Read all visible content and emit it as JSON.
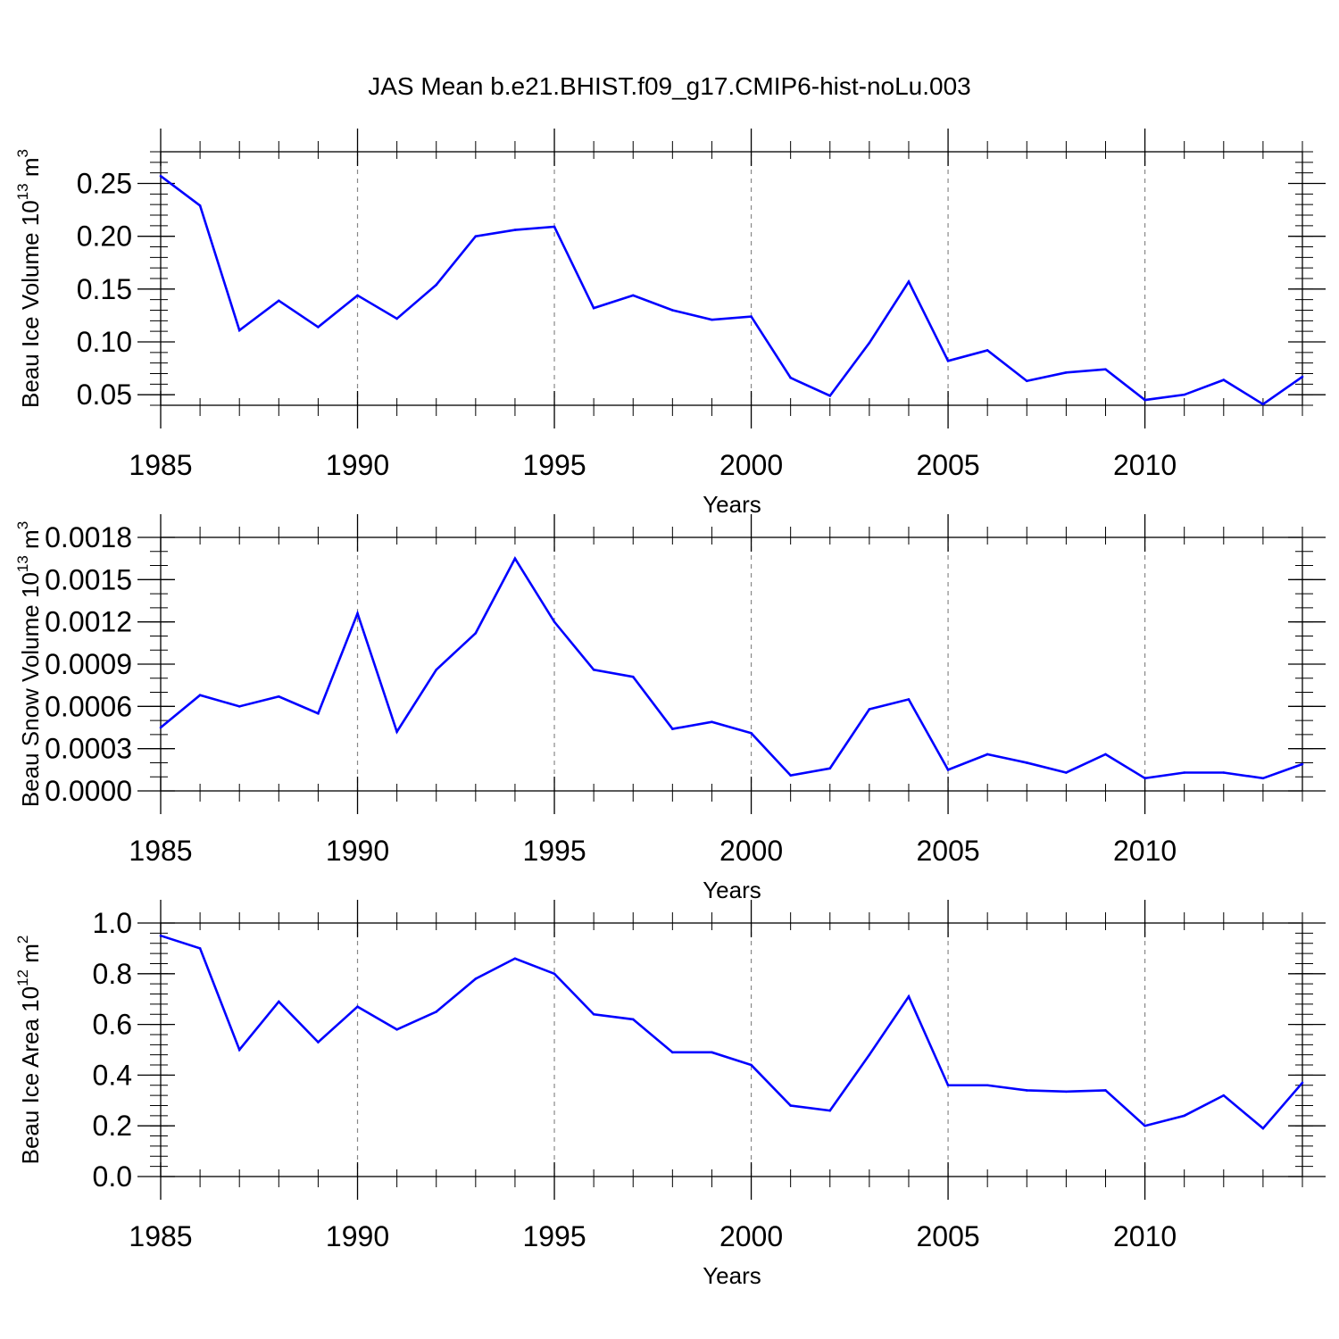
{
  "title": "JAS Mean b.e21.BHIST.f09_g17.CMIP6-hist-noLu.003",
  "line_color": "#0000ff",
  "chart_data": [
    {
      "id": "ice-volume",
      "type": "line",
      "ylabel": "Beau Ice Volume 10",
      "ylabel_exp": "13",
      "ylabel_unit": " m",
      "ylabel_unit_exp": "3",
      "xlabel": "Years",
      "xlim": [
        1985,
        2014
      ],
      "ylim": [
        0.04,
        0.28
      ],
      "xticks": [
        1985,
        1990,
        1995,
        2000,
        2005,
        2010
      ],
      "xtick_labels": [
        "1985",
        "1990",
        "1995",
        "2000",
        "2005",
        "2010"
      ],
      "yticks": [
        0.05,
        0.1,
        0.15,
        0.2,
        0.25
      ],
      "ytick_labels": [
        "0.05",
        "0.10",
        "0.15",
        "0.20",
        "0.25"
      ],
      "yminor_step": 0.01,
      "x": [
        1985,
        1986,
        1987,
        1988,
        1989,
        1990,
        1991,
        1992,
        1993,
        1994,
        1995,
        1996,
        1997,
        1998,
        1999,
        2000,
        2001,
        2002,
        2003,
        2004,
        2005,
        2006,
        2007,
        2008,
        2009,
        2010,
        2011,
        2012,
        2013,
        2014
      ],
      "values": [
        0.257,
        0.229,
        0.111,
        0.139,
        0.114,
        0.144,
        0.122,
        0.154,
        0.2,
        0.206,
        0.209,
        0.132,
        0.144,
        0.13,
        0.121,
        0.124,
        0.066,
        0.049,
        0.099,
        0.157,
        0.082,
        0.092,
        0.063,
        0.071,
        0.074,
        0.045,
        0.05,
        0.064,
        0.041,
        0.067
      ]
    },
    {
      "id": "snow-volume",
      "type": "line",
      "ylabel": "Beau Snow Volume 10",
      "ylabel_exp": "13",
      "ylabel_unit": " m",
      "ylabel_unit_exp": "3",
      "xlabel": "Years",
      "xlim": [
        1985,
        2014
      ],
      "ylim": [
        0.0,
        0.0018
      ],
      "xticks": [
        1985,
        1990,
        1995,
        2000,
        2005,
        2010
      ],
      "xtick_labels": [
        "1985",
        "1990",
        "1995",
        "2000",
        "2005",
        "2010"
      ],
      "yticks": [
        0.0,
        0.0003,
        0.0006,
        0.0009,
        0.0012,
        0.0015,
        0.0018
      ],
      "ytick_labels": [
        "0.0000",
        "0.0003",
        "0.0006",
        "0.0009",
        "0.0012",
        "0.0015",
        "0.0018"
      ],
      "yminor_step": 0.0001,
      "x": [
        1985,
        1986,
        1987,
        1988,
        1989,
        1990,
        1991,
        1992,
        1993,
        1994,
        1995,
        1996,
        1997,
        1998,
        1999,
        2000,
        2001,
        2002,
        2003,
        2004,
        2005,
        2006,
        2007,
        2008,
        2009,
        2010,
        2011,
        2012,
        2013,
        2014
      ],
      "values": [
        0.00045,
        0.00068,
        0.0006,
        0.00067,
        0.00055,
        0.00126,
        0.00042,
        0.00086,
        0.00112,
        0.00165,
        0.0012,
        0.00086,
        0.00081,
        0.00044,
        0.00049,
        0.00041,
        0.00011,
        0.00016,
        0.00058,
        0.00065,
        0.00015,
        0.00026,
        0.0002,
        0.00013,
        0.00026,
        9e-05,
        0.00013,
        0.00013,
        9e-05,
        0.00019
      ]
    },
    {
      "id": "ice-area",
      "type": "line",
      "ylabel": "Beau Ice Area 10",
      "ylabel_exp": "12",
      "ylabel_unit": " m",
      "ylabel_unit_exp": "2",
      "xlabel": "Years",
      "xlim": [
        1985,
        2014
      ],
      "ylim": [
        0.0,
        1.0
      ],
      "xticks": [
        1985,
        1990,
        1995,
        2000,
        2005,
        2010
      ],
      "xtick_labels": [
        "1985",
        "1990",
        "1995",
        "2000",
        "2005",
        "2010"
      ],
      "yticks": [
        0.0,
        0.2,
        0.4,
        0.6,
        0.8,
        1.0
      ],
      "ytick_labels": [
        "0.0",
        "0.2",
        "0.4",
        "0.6",
        "0.8",
        "1.0"
      ],
      "yminor_step": 0.04,
      "x": [
        1985,
        1986,
        1987,
        1988,
        1989,
        1990,
        1991,
        1992,
        1993,
        1994,
        1995,
        1996,
        1997,
        1998,
        1999,
        2000,
        2001,
        2002,
        2003,
        2004,
        2005,
        2006,
        2007,
        2008,
        2009,
        2010,
        2011,
        2012,
        2013,
        2014
      ],
      "values": [
        0.95,
        0.9,
        0.5,
        0.69,
        0.53,
        0.67,
        0.58,
        0.65,
        0.78,
        0.86,
        0.8,
        0.64,
        0.62,
        0.49,
        0.49,
        0.44,
        0.28,
        0.26,
        0.48,
        0.71,
        0.36,
        0.36,
        0.34,
        0.335,
        0.34,
        0.2,
        0.24,
        0.32,
        0.19,
        0.37
      ]
    }
  ]
}
